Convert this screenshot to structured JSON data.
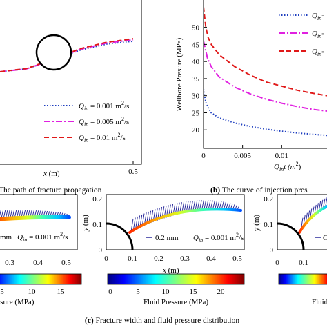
{
  "chart_data": [
    {
      "type": "line",
      "panel": "a",
      "caption": "The path of fracture propagation",
      "xlabel": "x (m)",
      "xticks": [
        "0.5"
      ],
      "legend_placement": "bottom-right",
      "series": [
        {
          "name": "Q_in = 0.001 m^2/s",
          "q": "0.001",
          "color": "#1f3fbf",
          "dash": "dotted",
          "x": [
            0.0,
            0.1,
            0.2,
            0.3,
            0.4,
            0.5
          ],
          "y": [
            0.002,
            0.01,
            0.035,
            0.062,
            0.079,
            0.087
          ]
        },
        {
          "name": "Q_in = 0.005 m^2/s",
          "q": "0.005",
          "color": "#e020e0",
          "dash": "dashdot",
          "x": [
            0.0,
            0.1,
            0.2,
            0.3,
            0.4,
            0.5
          ],
          "y": [
            0.002,
            0.01,
            0.036,
            0.064,
            0.082,
            0.091
          ]
        },
        {
          "name": "Q_in = 0.01 m^2/s",
          "q": "0.01",
          "color": "#e01818",
          "dash": "dashed",
          "x": [
            0.0,
            0.1,
            0.2,
            0.3,
            0.4,
            0.5
          ],
          "y": [
            0.002,
            0.011,
            0.037,
            0.066,
            0.084,
            0.094
          ]
        }
      ]
    },
    {
      "type": "line",
      "panel": "b",
      "caption": "The curve of injection pres",
      "xlabel": "Q_in t (m^2)",
      "ylabel": "Wellbore Presure (MPa)",
      "yticks": [
        20,
        25,
        30,
        35,
        40,
        45,
        50
      ],
      "xticks": [
        0.005,
        0.01
      ],
      "ylim": [
        15,
        58
      ],
      "xlim": [
        0,
        0.0158
      ],
      "series": [
        {
          "q": "0.001",
          "color": "#1f3fbf",
          "dash": "dotted",
          "x": [
            0.0,
            0.0001,
            0.0003,
            0.0006,
            0.001,
            0.002,
            0.004,
            0.006,
            0.008,
            0.01,
            0.012,
            0.014,
            0.0158
          ],
          "y": [
            32.0,
            30.5,
            28.0,
            26.5,
            25.0,
            23.5,
            22.0,
            21.0,
            20.2,
            19.6,
            19.1,
            18.7,
            18.4
          ]
        },
        {
          "q": "0.005",
          "color": "#e020e0",
          "dash": "dashdot",
          "x": [
            0.0,
            0.0002,
            0.0005,
            0.001,
            0.002,
            0.004,
            0.006,
            0.008,
            0.01,
            0.012,
            0.014,
            0.0158
          ],
          "y": [
            46.0,
            44.0,
            41.0,
            38.5,
            35.5,
            32.5,
            30.5,
            29.0,
            27.8,
            26.8,
            26.0,
            25.5
          ]
        },
        {
          "q": "0.01",
          "color": "#e01818",
          "dash": "dashed",
          "x": [
            0.0,
            0.0001,
            0.0003,
            0.0006,
            0.001,
            0.002,
            0.004,
            0.006,
            0.008,
            0.01,
            0.012,
            0.014,
            0.0158
          ],
          "y": [
            56.0,
            54.0,
            50.0,
            47.0,
            45.0,
            42.0,
            38.5,
            36.0,
            34.0,
            32.8,
            31.6,
            30.7,
            30.0
          ]
        }
      ],
      "legend_labels": [
        "Q_in",
        "Q_in",
        "Q_in"
      ]
    }
  ],
  "panel_a": {
    "legend": [
      {
        "prefix": "Q",
        "sub": "in",
        "text": " = 0.001 m",
        "sup": "2",
        "suffix": "/s"
      },
      {
        "prefix": "Q",
        "sub": "in",
        "text": " = 0.005 m",
        "sup": "2",
        "suffix": "/s"
      },
      {
        "prefix": "Q",
        "sub": "in",
        "text": " = 0.01 m",
        "sup": "2",
        "suffix": "/s"
      }
    ],
    "xlabel_main": "x",
    "xlabel_unit": " (m)",
    "xtick": "0.5",
    "caption": "The path of fracture propagation"
  },
  "panel_b": {
    "ylabel": "Wellbore Presure (MPa)",
    "yticks": [
      "20",
      "25",
      "30",
      "35",
      "40",
      "45",
      "50"
    ],
    "xticks": [
      "0",
      "0.005",
      "0.01"
    ],
    "xlabel_q": "Q",
    "xlabel_sub": "in",
    "xlabel_rest": "t (m",
    "xlabel_sup": "2",
    "xlabel_end": ")",
    "legend_q": "Q",
    "legend_sub": "in",
    "legend_tail": "=",
    "caption_bold": "(b)",
    "caption": " The curve of injection pres"
  },
  "panel_c": {
    "left": {
      "annotation_prefix": "mm",
      "annotation_q": "Q",
      "annotation_sub": "in",
      "annotation_text": " = 0.001 m",
      "annotation_sup": "2",
      "annotation_end": "/s",
      "xticks": [
        "0.3",
        "0.4",
        "0.5"
      ],
      "colorbar_ticks": [
        "5",
        "10",
        "15"
      ],
      "colorbar_label": "ssure (MPa)"
    },
    "mid": {
      "ylabel": "y (m)",
      "yticks": [
        "0",
        "0.1",
        "0.2"
      ],
      "xticks": [
        "0",
        "0.1",
        "0.2",
        "0.3",
        "0.4",
        "0.5"
      ],
      "xlabel": "x (m)",
      "annotation_scale": "0.2 mm",
      "annotation_q": "Q",
      "annotation_sub": "in",
      "annotation_text": " = 0.001 m",
      "annotation_sup": "2",
      "annotation_end": "/s",
      "colorbar_ticks": [
        "0",
        "5",
        "10",
        "15",
        "20"
      ],
      "colorbar_label": "Fluid Pressure (MPa)"
    },
    "right": {
      "ylabel": "y (m)",
      "yticks": [
        "0",
        "0.1",
        "0.2"
      ],
      "xticks": [
        "0",
        "0.1"
      ],
      "annotation": "C",
      "colorbar_label": "Fluid"
    },
    "caption_bold": "(c)",
    "caption": " Fracture width and fluid pressure distribution"
  }
}
